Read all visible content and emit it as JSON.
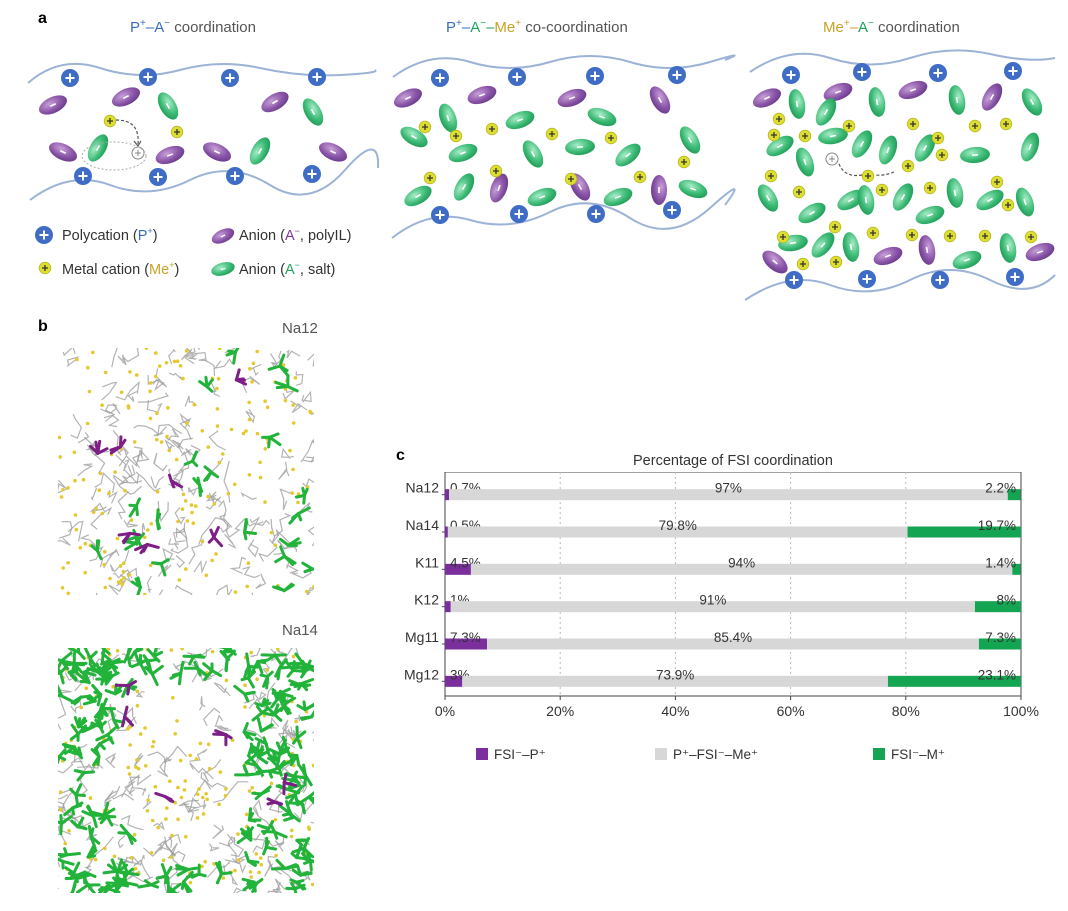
{
  "panel_a": {
    "letter": "a",
    "diagrams": [
      {
        "title_parts": [
          {
            "t": "P",
            "c": "blue"
          },
          {
            "t": "+",
            "c": "blue",
            "sup": true
          },
          {
            "t": "–",
            "c": "blue"
          },
          {
            "t": "A",
            "c": "blue"
          },
          {
            "t": "−",
            "c": "blue",
            "sup": true
          },
          {
            "t": " coordination",
            "c": "grey"
          }
        ]
      },
      {
        "title_parts": [
          {
            "t": "P",
            "c": "blue"
          },
          {
            "t": "+",
            "c": "blue",
            "sup": true
          },
          {
            "t": "–",
            "c": "blue"
          },
          {
            "t": "A",
            "c": "green"
          },
          {
            "t": "−",
            "c": "green",
            "sup": true
          },
          {
            "t": "–",
            "c": "green"
          },
          {
            "t": "Me",
            "c": "gold"
          },
          {
            "t": "+",
            "c": "gold",
            "sup": true
          },
          {
            "t": " co-coordination",
            "c": "grey"
          }
        ]
      },
      {
        "title_parts": [
          {
            "t": "Me",
            "c": "gold"
          },
          {
            "t": "+",
            "c": "gold",
            "sup": true
          },
          {
            "t": "–",
            "c": "gold"
          },
          {
            "t": "A",
            "c": "green"
          },
          {
            "t": "−",
            "c": "green",
            "sup": true
          },
          {
            "t": " coordination",
            "c": "grey"
          }
        ]
      }
    ],
    "legend": {
      "polycation": {
        "pre": "Polycation (",
        "hl": "P",
        "sup": "+",
        "post": ")"
      },
      "anion_polyil": {
        "pre": "Anion (",
        "hl": "A",
        "sup": "−",
        "post": ", polyIL)"
      },
      "metal_cation": {
        "pre": "Metal cation (",
        "hl": "Me",
        "sup": "+",
        "post": ")"
      },
      "anion_salt": {
        "pre": "Anion (",
        "hl": "A",
        "sup": "−",
        "post": ", salt)"
      }
    }
  },
  "panel_b": {
    "letter": "b",
    "snapshots": [
      {
        "label": "Na12"
      },
      {
        "label": "Na14"
      }
    ]
  },
  "panel_c": {
    "letter": "c",
    "chart_data": {
      "type": "bar",
      "orientation": "horizontal-stacked",
      "title": "Percentage of FSI coordination",
      "categories": [
        "Na12",
        "Na14",
        "K11",
        "K12",
        "Mg11",
        "Mg12"
      ],
      "series": [
        {
          "name": "FSI⁻–P⁺",
          "color": "#7b2f9d",
          "values": [
            0.7,
            0.5,
            4.5,
            1,
            7.3,
            3
          ],
          "labels": [
            "0.7%",
            "0.5%",
            "4.5%",
            "1%",
            "7.3%",
            "3%"
          ]
        },
        {
          "name": "P⁺–FSI⁻–Me⁺",
          "color": "#d7d7d7",
          "values": [
            97,
            79.8,
            94,
            91,
            85.4,
            73.9
          ],
          "labels": [
            "97%",
            "79.8%",
            "94%",
            "91%",
            "85.4%",
            "73.9%"
          ]
        },
        {
          "name": "FSI⁻–M⁺",
          "color": "#13a551",
          "values": [
            2.2,
            19.7,
            1.4,
            8,
            7.3,
            23.1
          ],
          "labels": [
            "2.2%",
            "19.7%",
            "1.4%",
            "8%",
            "7.3%",
            "23.1%"
          ]
        }
      ],
      "xlim": [
        0,
        100
      ],
      "xticks": [
        "0%",
        "20%",
        "40%",
        "60%",
        "80%",
        "100%"
      ],
      "grid": "vertical dashed"
    }
  }
}
